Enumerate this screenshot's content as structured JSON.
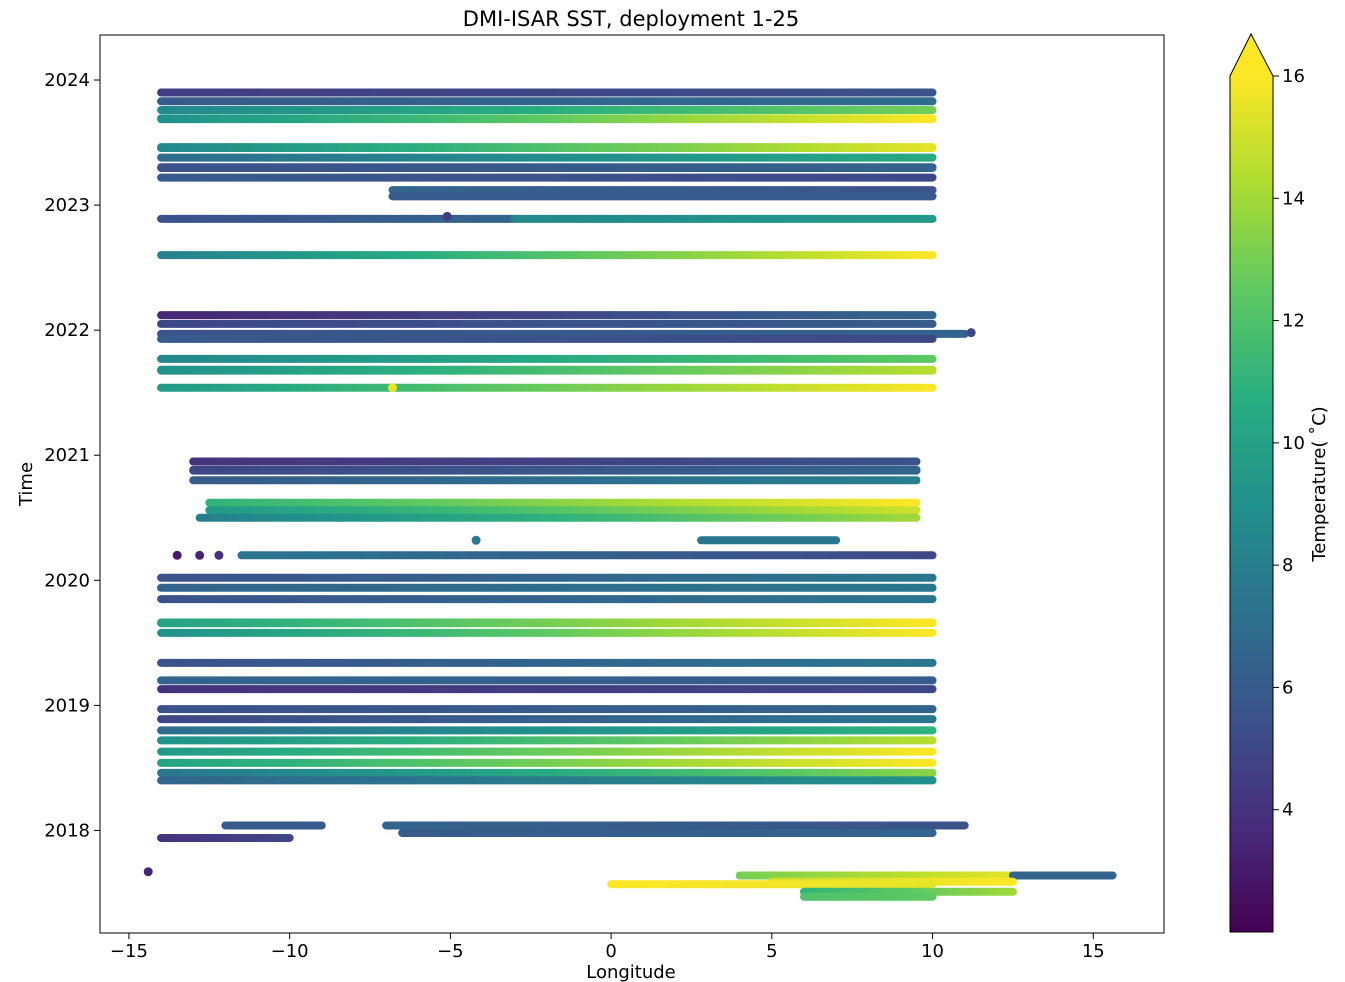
{
  "chart_data": {
    "type": "scatter",
    "title": "DMI-ISAR SST, deployment 1-25",
    "xlabel": "Longitude",
    "ylabel": "Time",
    "xlim": [
      -15.9,
      17.2
    ],
    "ylim": [
      2017.18,
      2024.36
    ],
    "xticks": [
      -15,
      -10,
      -5,
      0,
      5,
      10,
      15
    ],
    "xtick_labels": [
      "−15",
      "−10",
      "−5",
      "0",
      "5",
      "10",
      "15"
    ],
    "yticks": [
      2018,
      2019,
      2020,
      2021,
      2022,
      2023,
      2024
    ],
    "ytick_labels": [
      "2018",
      "2019",
      "2020",
      "2021",
      "2022",
      "2023",
      "2024"
    ],
    "grid": false,
    "colormap": "viridis",
    "colorbar": {
      "label": "Temperature( ˚C)",
      "vmin": 2.0,
      "vmax": 16.0,
      "extend": "max",
      "ticks": [
        4,
        6,
        8,
        10,
        12,
        14,
        16
      ],
      "tick_labels": [
        "4",
        "6",
        "8",
        "10",
        "12",
        "14",
        "16"
      ]
    },
    "tracks": [
      {
        "t": 2023.9,
        "thick": 0.05,
        "lon": [
          -14,
          10
        ],
        "temp": [
          4.5,
          5.5
        ]
      },
      {
        "t": 2023.83,
        "thick": 0.04,
        "lon": [
          -14,
          10
        ],
        "temp": [
          6.0,
          7.0
        ]
      },
      {
        "t": 2023.76,
        "thick": 0.04,
        "lon": [
          -14,
          10
        ],
        "temp": [
          8.5,
          13.0
        ]
      },
      {
        "t": 2023.69,
        "thick": 0.07,
        "lon": [
          -14,
          10
        ],
        "temp": [
          9.0,
          16.0
        ]
      },
      {
        "t": 2023.46,
        "thick": 0.07,
        "lon": [
          -14,
          10
        ],
        "temp": [
          8.5,
          15.5
        ]
      },
      {
        "t": 2023.38,
        "thick": 0.05,
        "lon": [
          -14,
          10
        ],
        "temp": [
          7.0,
          10.5
        ]
      },
      {
        "t": 2023.3,
        "thick": 0.07,
        "lon": [
          -14,
          10
        ],
        "temp": [
          5.5,
          6.5
        ]
      },
      {
        "t": 2023.22,
        "thick": 0.05,
        "lon": [
          -14,
          10
        ],
        "temp": [
          6.0,
          5.0
        ]
      },
      {
        "t": 2023.12,
        "thick": 0.04,
        "lon": [
          -6.8,
          10
        ],
        "temp": [
          6.5,
          5.5
        ]
      },
      {
        "t": 2023.07,
        "thick": 0.04,
        "lon": [
          -6.8,
          10
        ],
        "temp": [
          6.0,
          6.0
        ]
      },
      {
        "t": 2022.89,
        "thick": 0.035,
        "lon": [
          -14,
          -3
        ],
        "temp": [
          5.5,
          6.5
        ]
      },
      {
        "t": 2022.89,
        "thick": 0.035,
        "lon": [
          -3,
          10
        ],
        "temp": [
          8.5,
          9.5
        ]
      },
      {
        "t": 2022.6,
        "thick": 0.045,
        "lon": [
          -14,
          10
        ],
        "temp": [
          8.0,
          16.0
        ]
      },
      {
        "t": 2022.12,
        "thick": 0.04,
        "lon": [
          -14,
          10
        ],
        "temp": [
          3.5,
          6.5
        ]
      },
      {
        "t": 2022.05,
        "thick": 0.06,
        "lon": [
          -14,
          10
        ],
        "temp": [
          5.0,
          6.0
        ]
      },
      {
        "t": 2021.97,
        "thick": 0.05,
        "lon": [
          -14,
          11
        ],
        "temp": [
          5.5,
          6.5
        ]
      },
      {
        "t": 2021.93,
        "thick": 0.04,
        "lon": [
          -14,
          10
        ],
        "temp": [
          6.0,
          5.0
        ]
      },
      {
        "t": 2021.77,
        "thick": 0.045,
        "lon": [
          -14,
          10
        ],
        "temp": [
          8.5,
          12.5
        ]
      },
      {
        "t": 2021.68,
        "thick": 0.07,
        "lon": [
          -14,
          10
        ],
        "temp": [
          9.0,
          14.5
        ]
      },
      {
        "t": 2021.54,
        "thick": 0.045,
        "lon": [
          -14,
          10
        ],
        "temp": [
          9.5,
          16.0
        ]
      },
      {
        "t": 2020.95,
        "thick": 0.035,
        "lon": [
          -13,
          9.5
        ],
        "temp": [
          4.0,
          5.5
        ]
      },
      {
        "t": 2020.88,
        "thick": 0.07,
        "lon": [
          -13,
          9.5
        ],
        "temp": [
          5.0,
          6.5
        ]
      },
      {
        "t": 2020.8,
        "thick": 0.04,
        "lon": [
          -13,
          9.5
        ],
        "temp": [
          6.0,
          8.0
        ]
      },
      {
        "t": 2020.62,
        "thick": 0.035,
        "lon": [
          -12.5,
          9.5
        ],
        "temp": [
          11.0,
          16.0
        ]
      },
      {
        "t": 2020.56,
        "thick": 0.04,
        "lon": [
          -12.5,
          9.5
        ],
        "temp": [
          9.5,
          15.0
        ]
      },
      {
        "t": 2020.5,
        "thick": 0.04,
        "lon": [
          -12.8,
          9.5
        ],
        "temp": [
          8.0,
          14.0
        ]
      },
      {
        "t": 2020.32,
        "thick": 0.03,
        "lon": [
          2.8,
          7.0
        ],
        "temp": [
          7.5,
          7.5
        ]
      },
      {
        "t": 2020.2,
        "thick": 0.035,
        "lon": [
          -11.5,
          10
        ],
        "temp": [
          7.5,
          5.0
        ]
      },
      {
        "t": 2020.02,
        "thick": 0.035,
        "lon": [
          -14,
          10
        ],
        "temp": [
          5.5,
          7.5
        ]
      },
      {
        "t": 2019.94,
        "thick": 0.05,
        "lon": [
          -14,
          10
        ],
        "temp": [
          6.5,
          7.5
        ]
      },
      {
        "t": 2019.85,
        "thick": 0.045,
        "lon": [
          -14,
          10
        ],
        "temp": [
          5.5,
          7.5
        ]
      },
      {
        "t": 2019.66,
        "thick": 0.07,
        "lon": [
          -14,
          10
        ],
        "temp": [
          10.0,
          16.0
        ]
      },
      {
        "t": 2019.58,
        "thick": 0.06,
        "lon": [
          -14,
          10
        ],
        "temp": [
          9.0,
          16.0
        ]
      },
      {
        "t": 2019.34,
        "thick": 0.05,
        "lon": [
          -14,
          10
        ],
        "temp": [
          5.5,
          7.5
        ]
      },
      {
        "t": 2019.2,
        "thick": 0.04,
        "lon": [
          -14,
          10
        ],
        "temp": [
          6.5,
          6.0
        ]
      },
      {
        "t": 2019.13,
        "thick": 0.06,
        "lon": [
          -14,
          10
        ],
        "temp": [
          4.0,
          5.0
        ]
      },
      {
        "t": 2018.97,
        "thick": 0.05,
        "lon": [
          -14,
          10
        ],
        "temp": [
          5.5,
          6.5
        ]
      },
      {
        "t": 2018.89,
        "thick": 0.06,
        "lon": [
          -14,
          10
        ],
        "temp": [
          5.0,
          7.5
        ]
      },
      {
        "t": 2018.8,
        "thick": 0.06,
        "lon": [
          -14,
          10
        ],
        "temp": [
          7.0,
          11.0
        ]
      },
      {
        "t": 2018.72,
        "thick": 0.06,
        "lon": [
          -14,
          10
        ],
        "temp": [
          9.0,
          14.5
        ]
      },
      {
        "t": 2018.63,
        "thick": 0.06,
        "lon": [
          -14,
          10
        ],
        "temp": [
          9.5,
          16.0
        ]
      },
      {
        "t": 2018.54,
        "thick": 0.05,
        "lon": [
          -14,
          10
        ],
        "temp": [
          10.0,
          16.0
        ]
      },
      {
        "t": 2018.46,
        "thick": 0.04,
        "lon": [
          -14,
          10
        ],
        "temp": [
          7.5,
          13.5
        ]
      },
      {
        "t": 2018.4,
        "thick": 0.04,
        "lon": [
          -14,
          10
        ],
        "temp": [
          6.5,
          9.0
        ]
      },
      {
        "t": 2018.04,
        "thick": 0.04,
        "lon": [
          -12,
          -9
        ],
        "temp": [
          6.0,
          6.0
        ]
      },
      {
        "t": 2018.04,
        "thick": 0.04,
        "lon": [
          -7,
          11
        ],
        "temp": [
          6.5,
          5.5
        ]
      },
      {
        "t": 2017.98,
        "thick": 0.04,
        "lon": [
          -6.5,
          10
        ],
        "temp": [
          6.0,
          6.5
        ]
      },
      {
        "t": 2017.94,
        "thick": 0.04,
        "lon": [
          -14,
          -10
        ],
        "temp": [
          4.0,
          5.0
        ]
      },
      {
        "t": 2017.64,
        "thick": 0.04,
        "lon": [
          4,
          12.5
        ],
        "temp": [
          13.0,
          15.5
        ]
      },
      {
        "t": 2017.64,
        "thick": 0.04,
        "lon": [
          12.5,
          15.6
        ],
        "temp": [
          6.5,
          6.5
        ]
      },
      {
        "t": 2017.59,
        "thick": 0.05,
        "lon": [
          5,
          12.5
        ],
        "temp": [
          15.0,
          16.0
        ]
      },
      {
        "t": 2017.57,
        "thick": 0.045,
        "lon": [
          0,
          10
        ],
        "temp": [
          16.0,
          15.5
        ]
      },
      {
        "t": 2017.51,
        "thick": 0.04,
        "lon": [
          6,
          12.5
        ],
        "temp": [
          11.0,
          14.0
        ]
      },
      {
        "t": 2017.47,
        "thick": 0.03,
        "lon": [
          6,
          10
        ],
        "temp": [
          12.0,
          12.5
        ]
      }
    ],
    "points": [
      {
        "lon": -14.4,
        "t": 2017.67,
        "temp": 3.5
      },
      {
        "lon": -13.5,
        "t": 2020.2,
        "temp": 3.0
      },
      {
        "lon": -12.8,
        "t": 2020.2,
        "temp": 3.5
      },
      {
        "lon": -12.2,
        "t": 2020.2,
        "temp": 4.0
      },
      {
        "lon": -4.2,
        "t": 2020.32,
        "temp": 7.5
      },
      {
        "lon": -5.1,
        "t": 2022.91,
        "temp": 4.5
      },
      {
        "lon": -6.8,
        "t": 2021.54,
        "temp": 15.5
      },
      {
        "lon": 11.2,
        "t": 2021.98,
        "temp": 5.0
      }
    ]
  }
}
